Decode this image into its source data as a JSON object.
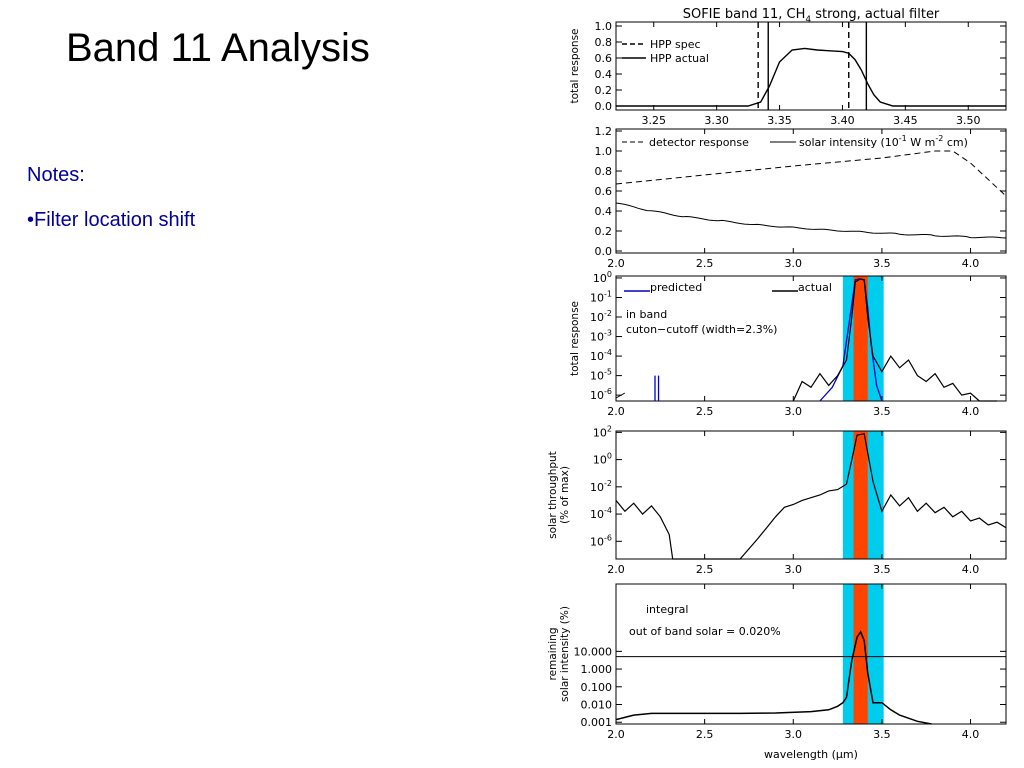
{
  "slide": {
    "title": "Band 11 Analysis",
    "notes_heading": "Notes:",
    "notes_bullet": "•Filter location shift"
  },
  "colors": {
    "predicted": "#0000cc",
    "in_band": "#00ccee",
    "cuton_cutoff": "#ff4400",
    "axis": "#000000"
  },
  "chart_data": [
    {
      "type": "line",
      "title": "SOFIE band 11, CH$_4$ strong, actual filter",
      "title_text": "SOFIE band 11, CH",
      "title_sub": "4",
      "title_tail": " strong, actual filter",
      "ylabel": "total response",
      "xlim": [
        3.22,
        3.53
      ],
      "ylim": [
        -0.05,
        1.05
      ],
      "xticks": [
        "3.25",
        "3.30",
        "3.35",
        "3.40",
        "3.45",
        "3.50"
      ],
      "xtick_values": [
        3.25,
        3.3,
        3.35,
        3.4,
        3.45,
        3.5
      ],
      "yticks": [
        "0.0",
        "0.2",
        "0.4",
        "0.6",
        "0.8",
        "1.0"
      ],
      "ytick_values": [
        0.0,
        0.2,
        0.4,
        0.6,
        0.8,
        1.0
      ],
      "legend": [
        "HPP spec",
        "HPP actual"
      ],
      "series": [
        {
          "name": "HPP actual",
          "x": [
            3.22,
            3.325,
            3.335,
            3.342,
            3.35,
            3.36,
            3.37,
            3.38,
            3.39,
            3.4,
            3.405,
            3.41,
            3.415,
            3.42,
            3.425,
            3.43,
            3.44,
            3.53
          ],
          "y": [
            0.0,
            0.0,
            0.05,
            0.25,
            0.55,
            0.7,
            0.72,
            0.7,
            0.69,
            0.68,
            0.66,
            0.58,
            0.45,
            0.28,
            0.14,
            0.05,
            0.0,
            0.0
          ]
        }
      ],
      "vlines_spec": [
        3.333,
        3.405
      ],
      "vlines_actual": [
        3.341,
        3.419
      ]
    },
    {
      "type": "line",
      "legend": [
        "detector response",
        "solar intensity (10$^{-1}$ W m$^{-2}$ cm)"
      ],
      "legend_a": "detector response",
      "legend_b": "solar intensity (10",
      "legend_b_sup": "-1",
      "legend_b_mid": " W m",
      "legend_b_sup2": "-2",
      "legend_b_tail": " cm)",
      "xlim": [
        2.0,
        4.2
      ],
      "ylim": [
        -0.02,
        1.22
      ],
      "xticks": [
        "2.0",
        "2.5",
        "3.0",
        "3.5",
        "4.0"
      ],
      "xtick_values": [
        2.0,
        2.5,
        3.0,
        3.5,
        4.0
      ],
      "yticks": [
        "0.0",
        "0.2",
        "0.4",
        "0.6",
        "0.8",
        "1.0",
        "1.2"
      ],
      "ytick_values": [
        0.0,
        0.2,
        0.4,
        0.6,
        0.8,
        1.0,
        1.2
      ],
      "series": [
        {
          "name": "detector response",
          "x": [
            2.0,
            2.5,
            3.0,
            3.5,
            3.8,
            3.9,
            4.0,
            4.2
          ],
          "y": [
            0.67,
            0.76,
            0.85,
            0.93,
            1.0,
            1.0,
            0.88,
            0.55
          ]
        },
        {
          "name": "solar intensity",
          "x": [
            2.0,
            2.2,
            2.4,
            2.6,
            2.8,
            3.0,
            3.2,
            3.4,
            3.6,
            3.8,
            4.0,
            4.2
          ],
          "y": [
            0.48,
            0.4,
            0.34,
            0.3,
            0.26,
            0.235,
            0.21,
            0.19,
            0.17,
            0.155,
            0.14,
            0.13
          ]
        }
      ]
    },
    {
      "type": "line",
      "ylabel": "total response",
      "xlim": [
        2.0,
        4.2
      ],
      "ylog": true,
      "ylim_exp": [
        -6.3,
        0.1
      ],
      "xticks": [
        "2.0",
        "2.5",
        "3.0",
        "3.5",
        "4.0"
      ],
      "xtick_values": [
        2.0,
        2.5,
        3.0,
        3.5,
        4.0
      ],
      "yticks_exp": [
        "0",
        "-1",
        "-2",
        "-3",
        "-4",
        "-5",
        "-6"
      ],
      "ytick_values_exp": [
        0,
        -1,
        -2,
        -3,
        -4,
        -5,
        -6
      ],
      "ytick_base": "10",
      "legend": [
        "predicted",
        "actual"
      ],
      "annotations": [
        "in band",
        "cuton−cutoff (width=2.3%)"
      ],
      "band_in": [
        3.28,
        3.51
      ],
      "band_cut": [
        3.34,
        3.42
      ],
      "series": [
        {
          "name": "predicted",
          "x": [
            3.15,
            3.22,
            3.28,
            3.32,
            3.35,
            3.37,
            3.4,
            3.42,
            3.44,
            3.47,
            3.5
          ],
          "log_y": [
            -6.3,
            -5.6,
            -4.5,
            -2.0,
            -0.1,
            -0.05,
            -0.1,
            -1.5,
            -3.5,
            -5.5,
            -6.3
          ]
        },
        {
          "name": "actual",
          "x": [
            3.0,
            3.05,
            3.1,
            3.15,
            3.2,
            3.25,
            3.3,
            3.33,
            3.35,
            3.38,
            3.4,
            3.42,
            3.45,
            3.5,
            3.55,
            3.6,
            3.65,
            3.7,
            3.75,
            3.8,
            3.85,
            3.9,
            3.95,
            4.0,
            4.05,
            4.1,
            4.15
          ],
          "log_y": [
            -6.3,
            -5.3,
            -5.6,
            -4.9,
            -5.5,
            -5.0,
            -4.2,
            -2.0,
            -0.2,
            -0.05,
            -0.1,
            -2.0,
            -4.0,
            -4.8,
            -4.0,
            -4.6,
            -4.2,
            -5.0,
            -5.3,
            -4.9,
            -5.6,
            -5.4,
            -6.0,
            -5.9,
            -6.3,
            -6.3,
            -6.3
          ]
        }
      ]
    },
    {
      "type": "line",
      "ylabel": [
        "solar throughput",
        "(% of max)"
      ],
      "xlim": [
        2.0,
        4.2
      ],
      "ylog": true,
      "ylim_exp": [
        -7.3,
        2.1
      ],
      "xticks": [
        "2.0",
        "2.5",
        "3.0",
        "3.5",
        "4.0"
      ],
      "xtick_values": [
        2.0,
        2.5,
        3.0,
        3.5,
        4.0
      ],
      "yticks_exp": [
        "2",
        "0",
        "-2",
        "-4",
        "-6"
      ],
      "ytick_values_exp": [
        2,
        0,
        -2,
        -4,
        -6
      ],
      "ytick_base": "10",
      "band_in": [
        3.28,
        3.51
      ],
      "band_cut": [
        3.34,
        3.42
      ],
      "series": [
        {
          "name": "solar throughput",
          "x": [
            2.0,
            2.05,
            2.1,
            2.15,
            2.2,
            2.25,
            2.3,
            2.32,
            2.6,
            2.7,
            2.8,
            2.85,
            2.9,
            2.95,
            3.0,
            3.05,
            3.1,
            3.15,
            3.2,
            3.25,
            3.3,
            3.33,
            3.36,
            3.4,
            3.42,
            3.45,
            3.5,
            3.55,
            3.6,
            3.65,
            3.7,
            3.75,
            3.8,
            3.85,
            3.9,
            3.95,
            4.0,
            4.05,
            4.1,
            4.15,
            4.2
          ],
          "log_y": [
            -3.0,
            -3.8,
            -3.2,
            -4.0,
            -3.4,
            -4.2,
            -5.5,
            -7.3,
            -7.3,
            -7.3,
            -5.8,
            -5.0,
            -4.2,
            -3.5,
            -3.3,
            -3.0,
            -2.8,
            -2.6,
            -2.3,
            -2.2,
            -1.8,
            0.0,
            1.8,
            1.9,
            0.5,
            -1.6,
            -3.8,
            -2.6,
            -3.4,
            -2.8,
            -3.8,
            -3.2,
            -3.9,
            -3.5,
            -4.2,
            -3.8,
            -4.5,
            -4.3,
            -4.8,
            -4.6,
            -5.0
          ]
        }
      ]
    },
    {
      "type": "line",
      "ylabel": [
        "remaining",
        "solar intensity (%)"
      ],
      "xlabel": "wavelength ($\\mu$m)",
      "xlabel_text": "wavelength (",
      "xlabel_mu": "μ",
      "xlabel_tail": "m)",
      "xlim": [
        2.0,
        4.2
      ],
      "ylog": true,
      "ylim_exp": [
        -3.1,
        4.8
      ],
      "xticks": [
        "2.0",
        "2.5",
        "3.0",
        "3.5",
        "4.0"
      ],
      "xtick_values": [
        2.0,
        2.5,
        3.0,
        3.5,
        4.0
      ],
      "yticks": [
        "10.000",
        "1.000",
        "0.100",
        "0.010",
        "0.001"
      ],
      "ytick_values_exp": [
        1,
        0,
        -1,
        -2,
        -3
      ],
      "annotations": [
        "integral",
        "out of band solar = 0.020%"
      ],
      "band_in": [
        3.28,
        3.51
      ],
      "band_cut": [
        3.34,
        3.42
      ],
      "integral_log_y": 0.7,
      "series": [
        {
          "name": "remaining solar intensity",
          "x": [
            2.0,
            2.1,
            2.2,
            2.3,
            2.5,
            2.7,
            2.9,
            3.1,
            3.2,
            3.25,
            3.28,
            3.3,
            3.33,
            3.36,
            3.38,
            3.4,
            3.42,
            3.45,
            3.5,
            3.55,
            3.6,
            3.7,
            3.78
          ],
          "log_y": [
            -2.85,
            -2.6,
            -2.5,
            -2.5,
            -2.5,
            -2.5,
            -2.48,
            -2.4,
            -2.3,
            -2.1,
            -1.9,
            -1.6,
            0.5,
            1.8,
            2.1,
            1.6,
            -0.2,
            -1.9,
            -1.9,
            -2.3,
            -2.6,
            -2.95,
            -3.1
          ]
        }
      ]
    }
  ]
}
